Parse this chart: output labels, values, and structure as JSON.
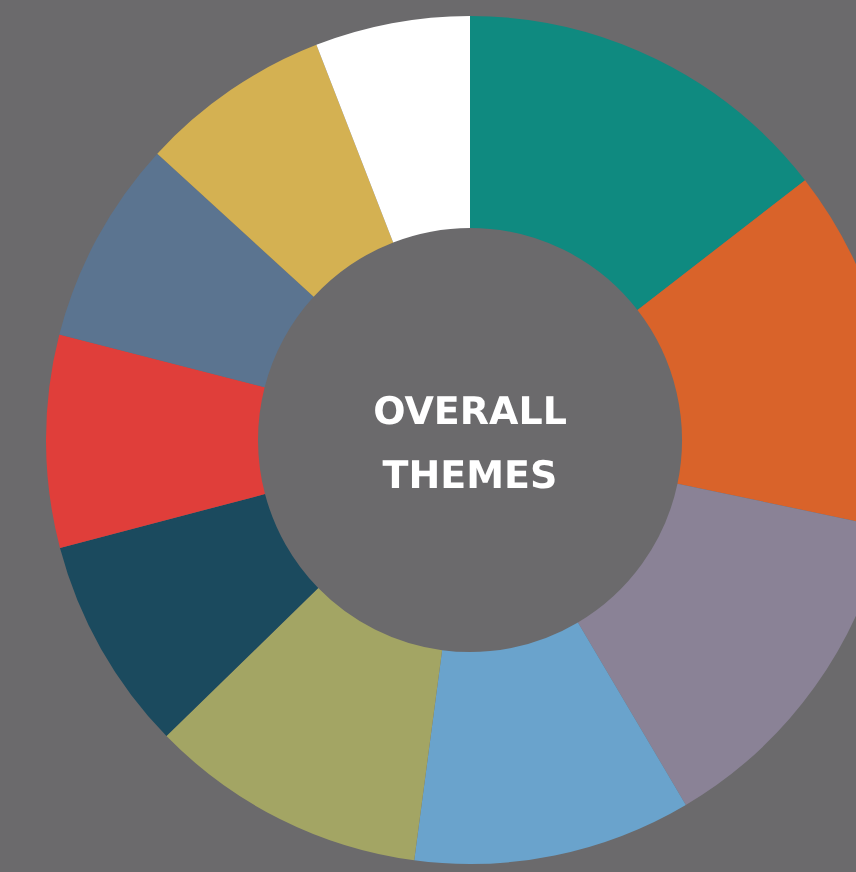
{
  "chart_data": {
    "type": "donut",
    "title": "OVERALL THEMES",
    "categories": [
      null,
      null,
      null,
      null,
      null,
      null,
      null,
      null,
      null,
      null
    ],
    "values": [
      14.5,
      13.8,
      13.2,
      10.6,
      10.6,
      8.2,
      8.1,
      7.8,
      7.3,
      5.9
    ],
    "colors": [
      "#0f8a80",
      "#d9632a",
      "#8a8296",
      "#6aa3cc",
      "#a3a564",
      "#1b4a5e",
      "#e03e3a",
      "#5b7490",
      "#d4b152",
      "#ffffff"
    ]
  }
}
